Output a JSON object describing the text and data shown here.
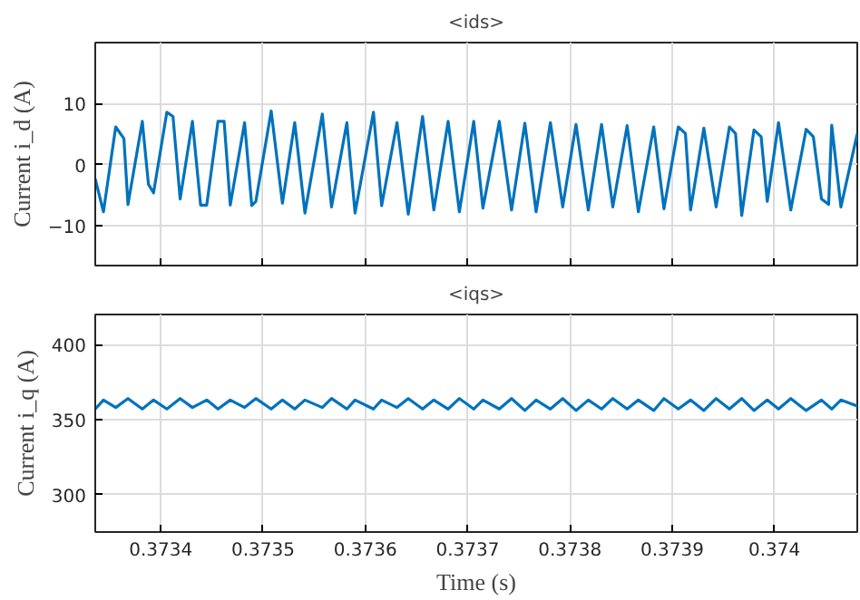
{
  "chart_data": [
    {
      "type": "line",
      "title": "<ids>",
      "ylabel": "Current i_d (A)",
      "xlim": [
        0.373336,
        0.374081
      ],
      "xticks": [
        0.3734,
        0.3735,
        0.3736,
        0.3737,
        0.3738,
        0.3739,
        0.374
      ],
      "ylim": [
        -16.5,
        20
      ],
      "yticks": [
        -10,
        0,
        10
      ],
      "grid": true,
      "tick_labels": "y",
      "line_style": "solid",
      "series": [
        {
          "color": "#0072bd",
          "x": [
            0.373336,
            0.373344,
            0.373356,
            0.373364,
            0.373368,
            0.373382,
            0.373388,
            0.373393,
            0.373406,
            0.373412,
            0.373419,
            0.373431,
            0.373439,
            0.373445,
            0.373456,
            0.373462,
            0.373468,
            0.373482,
            0.373489,
            0.373493,
            0.373508,
            0.373519,
            0.373531,
            0.373541,
            0.373558,
            0.373567,
            0.373582,
            0.37359,
            0.373608,
            0.373616,
            0.373631,
            0.373642,
            0.373656,
            0.373667,
            0.373681,
            0.373692,
            0.373706,
            0.373715,
            0.373731,
            0.373743,
            0.373756,
            0.373767,
            0.373781,
            0.373793,
            0.373806,
            0.373818,
            0.373831,
            0.373842,
            0.373856,
            0.373867,
            0.373882,
            0.373892,
            0.373906,
            0.373913,
            0.373918,
            0.373931,
            0.373943,
            0.373956,
            0.373962,
            0.373968,
            0.37398,
            0.373987,
            0.373993,
            0.374004,
            0.374016,
            0.374031,
            0.374038,
            0.374046,
            0.374053,
            0.374056,
            0.374065,
            0.374081
          ],
          "values": [
            -2.3,
            -7.7,
            6.2,
            4.3,
            -6.5,
            7.1,
            -3.2,
            -4.6,
            8.6,
            7.9,
            -5.6,
            7.1,
            -6.6,
            -6.6,
            7.1,
            7.1,
            -6.6,
            6.9,
            -6.7,
            -6.0,
            8.8,
            -6.3,
            6.9,
            -7.9,
            8.3,
            -6.9,
            6.9,
            -7.9,
            8.6,
            -6.7,
            6.9,
            -8.1,
            7.9,
            -7.4,
            7.1,
            -7.7,
            7.1,
            -7.1,
            7.1,
            -7.4,
            6.8,
            -7.7,
            6.9,
            -6.9,
            6.6,
            -7.4,
            6.6,
            -6.9,
            6.4,
            -7.7,
            6.2,
            -7.2,
            6.2,
            5.1,
            -7.4,
            6.0,
            -6.9,
            6.2,
            5.1,
            -8.3,
            5.7,
            4.6,
            -6.0,
            6.9,
            -7.4,
            5.8,
            4.6,
            -5.6,
            -6.5,
            6.5,
            -6.9,
            5.1
          ]
        }
      ]
    },
    {
      "type": "line",
      "title": "<iqs>",
      "xlabel": "Time (s)",
      "ylabel": "Current i_q (A)",
      "xlim": [
        0.373336,
        0.374081
      ],
      "xticks": [
        0.3734,
        0.3735,
        0.3736,
        0.3737,
        0.3738,
        0.3739,
        0.374
      ],
      "ylim": [
        275,
        420
      ],
      "yticks": [
        300,
        350,
        400
      ],
      "grid": true,
      "line_style": "solid",
      "series": [
        {
          "color": "#0072bd",
          "x": [
            0.373336,
            0.373344,
            0.373356,
            0.373368,
            0.373382,
            0.373393,
            0.373406,
            0.373419,
            0.373431,
            0.373445,
            0.373456,
            0.373468,
            0.373482,
            0.373493,
            0.373508,
            0.373519,
            0.373531,
            0.373541,
            0.373558,
            0.373567,
            0.373582,
            0.37359,
            0.373608,
            0.373616,
            0.373631,
            0.373642,
            0.373656,
            0.373667,
            0.373681,
            0.373692,
            0.373706,
            0.373715,
            0.373731,
            0.373743,
            0.373756,
            0.373767,
            0.373781,
            0.373793,
            0.373806,
            0.373818,
            0.373831,
            0.373842,
            0.373856,
            0.373867,
            0.373882,
            0.373892,
            0.373906,
            0.373918,
            0.373931,
            0.373943,
            0.373956,
            0.373968,
            0.37398,
            0.373993,
            0.374004,
            0.374016,
            0.374031,
            0.374046,
            0.374056,
            0.374065,
            0.374081
          ],
          "values": [
            357,
            363,
            358,
            364,
            357,
            363,
            357,
            364,
            358,
            363,
            357,
            363,
            358,
            364,
            357,
            363,
            357,
            363,
            358,
            364,
            357,
            363,
            357,
            363,
            358,
            364,
            357,
            363,
            357,
            364,
            357,
            363,
            357,
            364,
            356,
            363,
            357,
            364,
            356,
            363,
            357,
            364,
            357,
            363,
            356,
            364,
            357,
            363,
            356,
            364,
            357,
            364,
            356,
            363,
            357,
            364,
            356,
            363,
            357,
            363,
            359
          ]
        }
      ]
    }
  ]
}
